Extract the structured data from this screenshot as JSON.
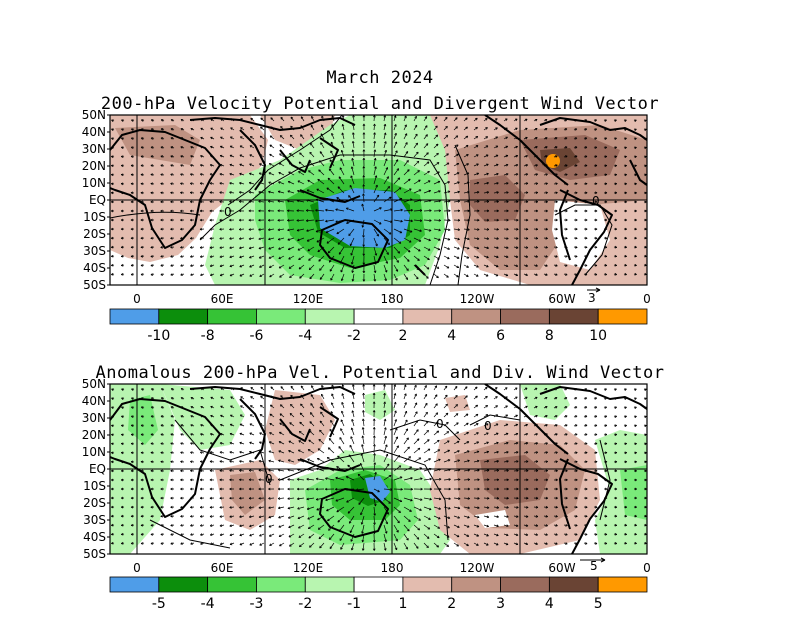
{
  "main_title": "March 2024",
  "panel1": {
    "title": "200-hPa Velocity Potential and Divergent Wind Vector",
    "vector_ref": "3",
    "colorbar_labels": [
      "-10",
      "-8",
      "-6",
      "-4",
      "-2",
      "2",
      "4",
      "6",
      "8",
      "10"
    ]
  },
  "panel2": {
    "title": "Anomalous 200-hPa Vel. Potential and Div. Wind Vector",
    "vector_ref": "5",
    "colorbar_labels": [
      "-5",
      "-4",
      "-3",
      "-2",
      "-1",
      "1",
      "2",
      "3",
      "4",
      "5"
    ]
  },
  "lat_labels": [
    "50N",
    "40N",
    "30N",
    "20N",
    "10N",
    "EQ",
    "10S",
    "20S",
    "30S",
    "40S",
    "50S"
  ],
  "lon_labels": [
    "0",
    "60E",
    "120E",
    "180",
    "120W",
    "60W",
    "0"
  ],
  "colorbar_colors": [
    "#4f9de8",
    "#0c8e0c",
    "#36c336",
    "#7aea7a",
    "#b8f5b0",
    "#ffffff",
    "#e3bcaf",
    "#bf9282",
    "#9a6b5d",
    "#6a4434",
    "#ff9900"
  ]
}
